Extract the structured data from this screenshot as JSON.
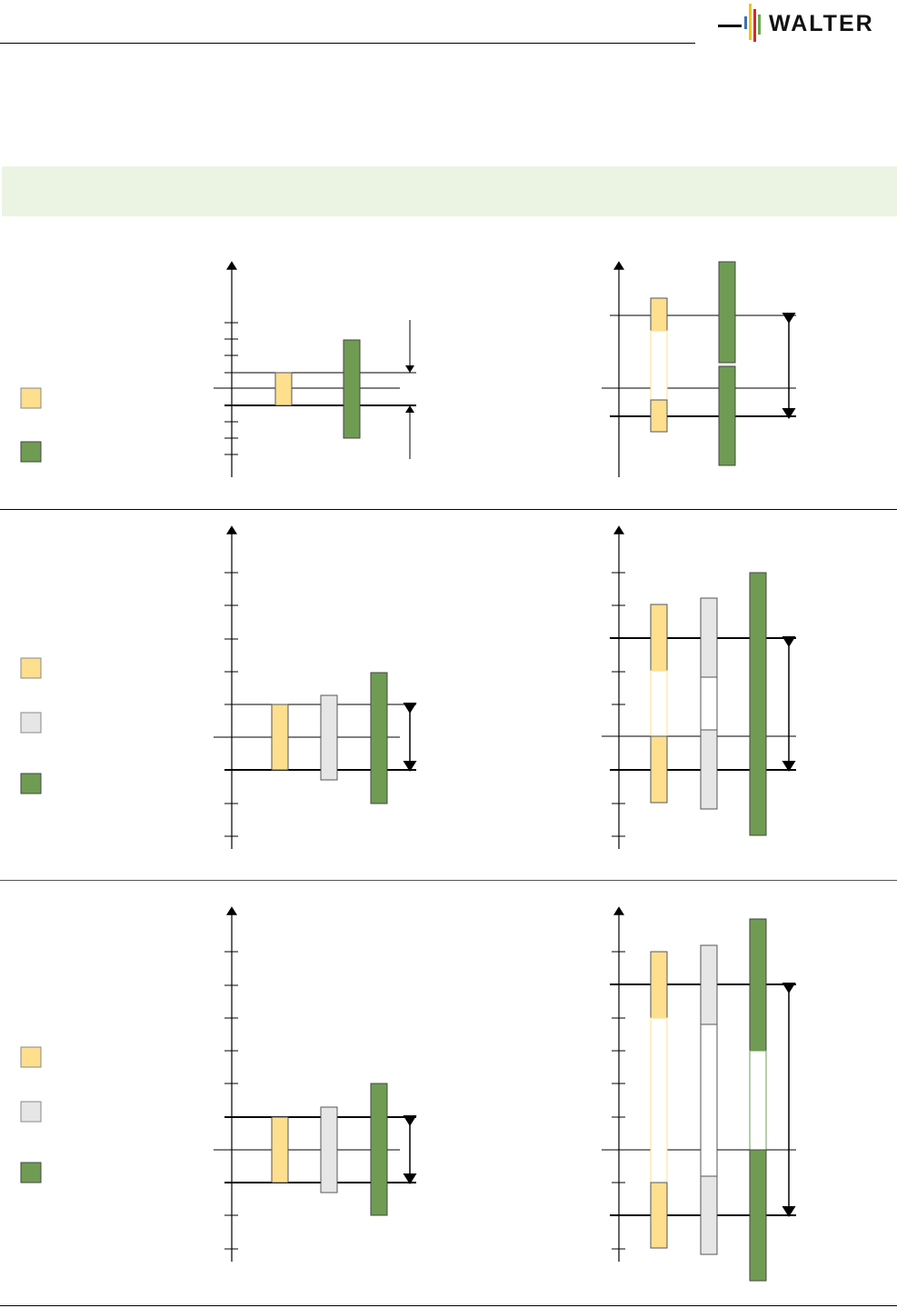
{
  "brand": {
    "logo_text": "WALTER",
    "colors": {
      "yellow": "#f0c419",
      "red": "#d8262b",
      "blue": "#3b6fb6",
      "green": "#6aa84f"
    }
  },
  "legend_colors": {
    "yellow": "#fddf8e",
    "gray": "#e6e6e6",
    "green": "#6f9c52"
  }
}
